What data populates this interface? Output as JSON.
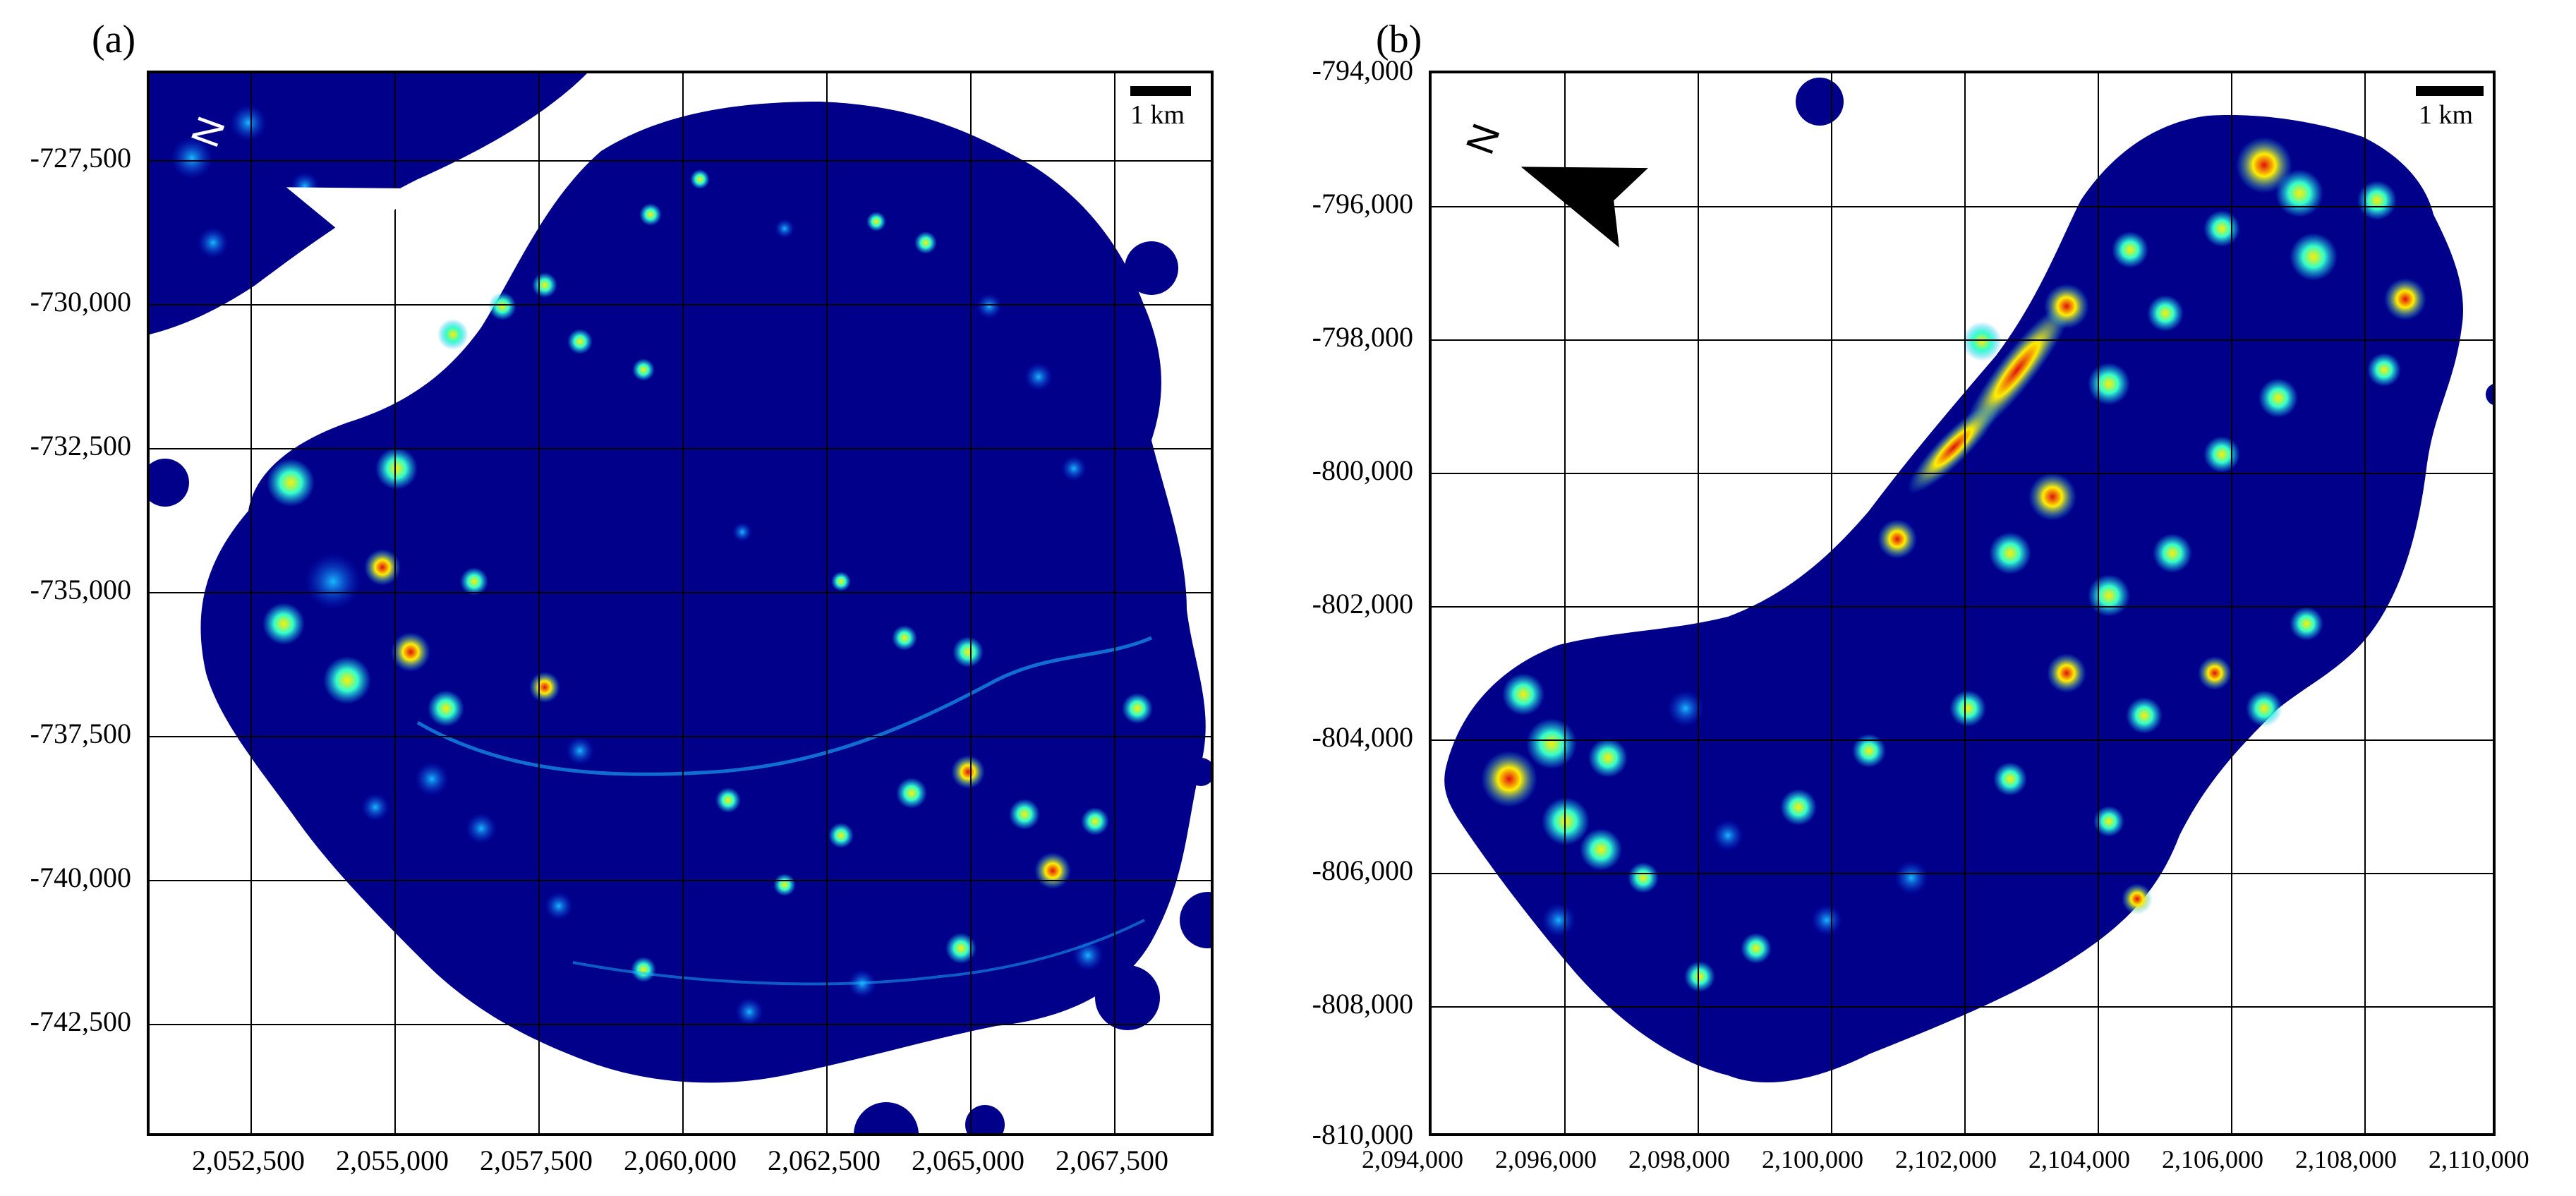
{
  "figure": {
    "panels": [
      {
        "id": "a",
        "label": "(a)",
        "scale_bar_label": "1 km",
        "north_label": "N",
        "north_arrow_color": "#ffffff",
        "y_ticks": [
          "-727,500",
          "-730,000",
          "-732,500",
          "-735,000",
          "-737,500",
          "-740,000",
          "-742,500"
        ],
        "x_ticks": [
          "2,052,500",
          "2,055,000",
          "2,057,500",
          "2,060,000",
          "2,062,500",
          "2,065,000",
          "2,067,500"
        ]
      },
      {
        "id": "b",
        "label": "(b)",
        "scale_bar_label": "1 km",
        "north_label": "N",
        "north_arrow_color": "#000000",
        "y_ticks": [
          "-794,000",
          "-796,000",
          "-798,000",
          "-800,000",
          "-802,000",
          "-804,000",
          "-806,000",
          "-808,000",
          "-810,000"
        ],
        "x_ticks": [
          "2,094,000",
          "2,096,000",
          "2,098,000",
          "2,100,000",
          "2,102,000",
          "2,104,000",
          "2,106,000",
          "2,108,000",
          "2,110,000"
        ]
      }
    ],
    "colors": {
      "background": "#00008b",
      "low": "#0a2fd6",
      "mid": "#19b8ff",
      "midhigh": "#33ffcc",
      "high": "#ffee00",
      "peak": "#e01010",
      "grid": "#000000"
    }
  }
}
